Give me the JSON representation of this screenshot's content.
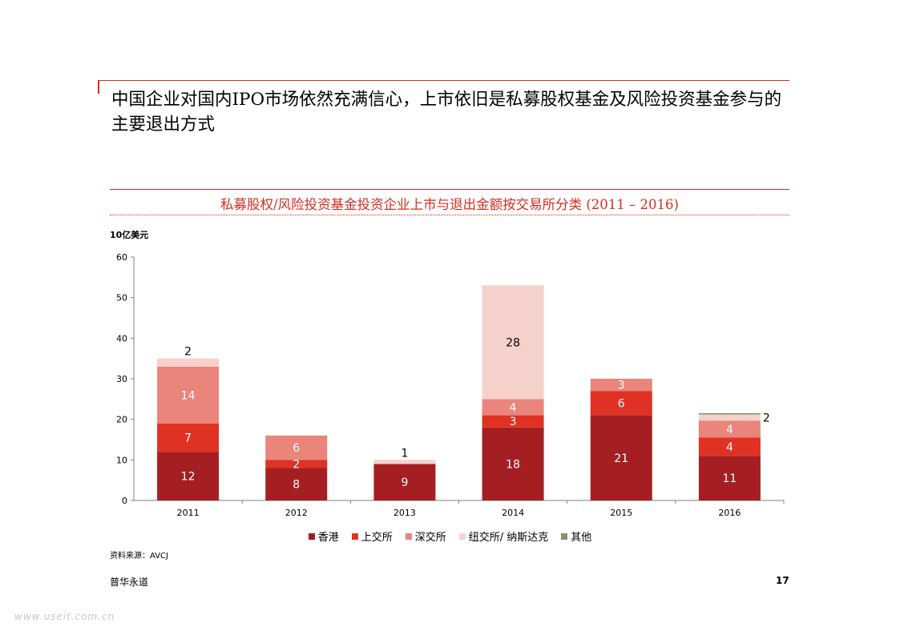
{
  "page": {
    "title": "中国企业对国内IPO市场依然充满信心，上市依旧是私募股权基金及风险投资基金参与的主要退出方式",
    "source_note": "资料来源：AVCJ",
    "footer_brand": "普华永道",
    "page_number": "17",
    "watermark": "www.useit.com.cn"
  },
  "colors": {
    "accent": "#d92b1f",
    "series": [
      "#a51f22",
      "#df3224",
      "#e9857a",
      "#f6d1cc",
      "#8b8f6b"
    ]
  },
  "chart_data": {
    "type": "bar",
    "stacked": true,
    "title": "私募股权/风险投资基金投资企业上市与退出金额按交易所分类 (2011 – 2016)",
    "unit_label": "10亿美元",
    "categories": [
      "2011",
      "2012",
      "2013",
      "2014",
      "2015",
      "2016"
    ],
    "ylim": [
      0,
      60
    ],
    "yticks": [
      0,
      10,
      20,
      30,
      40,
      50,
      60
    ],
    "series": [
      {
        "name": "香港",
        "values": [
          12,
          8,
          9,
          18,
          21,
          11
        ],
        "labels": [
          "12",
          "8",
          "9",
          "18",
          "21",
          "11"
        ]
      },
      {
        "name": "上交所",
        "values": [
          7,
          2,
          0,
          3,
          6,
          4.5
        ],
        "labels": [
          "7",
          "2",
          "",
          "3",
          "6",
          "4"
        ]
      },
      {
        "name": "深交所",
        "values": [
          14,
          6,
          0,
          4,
          3,
          4.2
        ],
        "labels": [
          "14",
          "6",
          "",
          "4",
          "3",
          "4"
        ]
      },
      {
        "name": "纽交所/ 纳斯达克",
        "values": [
          2,
          0,
          1,
          28,
          0,
          1.5
        ],
        "labels": [
          "2",
          "",
          "1",
          "28",
          "",
          "2"
        ]
      },
      {
        "name": "其他",
        "values": [
          0,
          0,
          0,
          0,
          0,
          0.3
        ],
        "labels": [
          "",
          "",
          "",
          "",
          "",
          ""
        ]
      }
    ],
    "grid": false,
    "legend_position": "bottom"
  }
}
